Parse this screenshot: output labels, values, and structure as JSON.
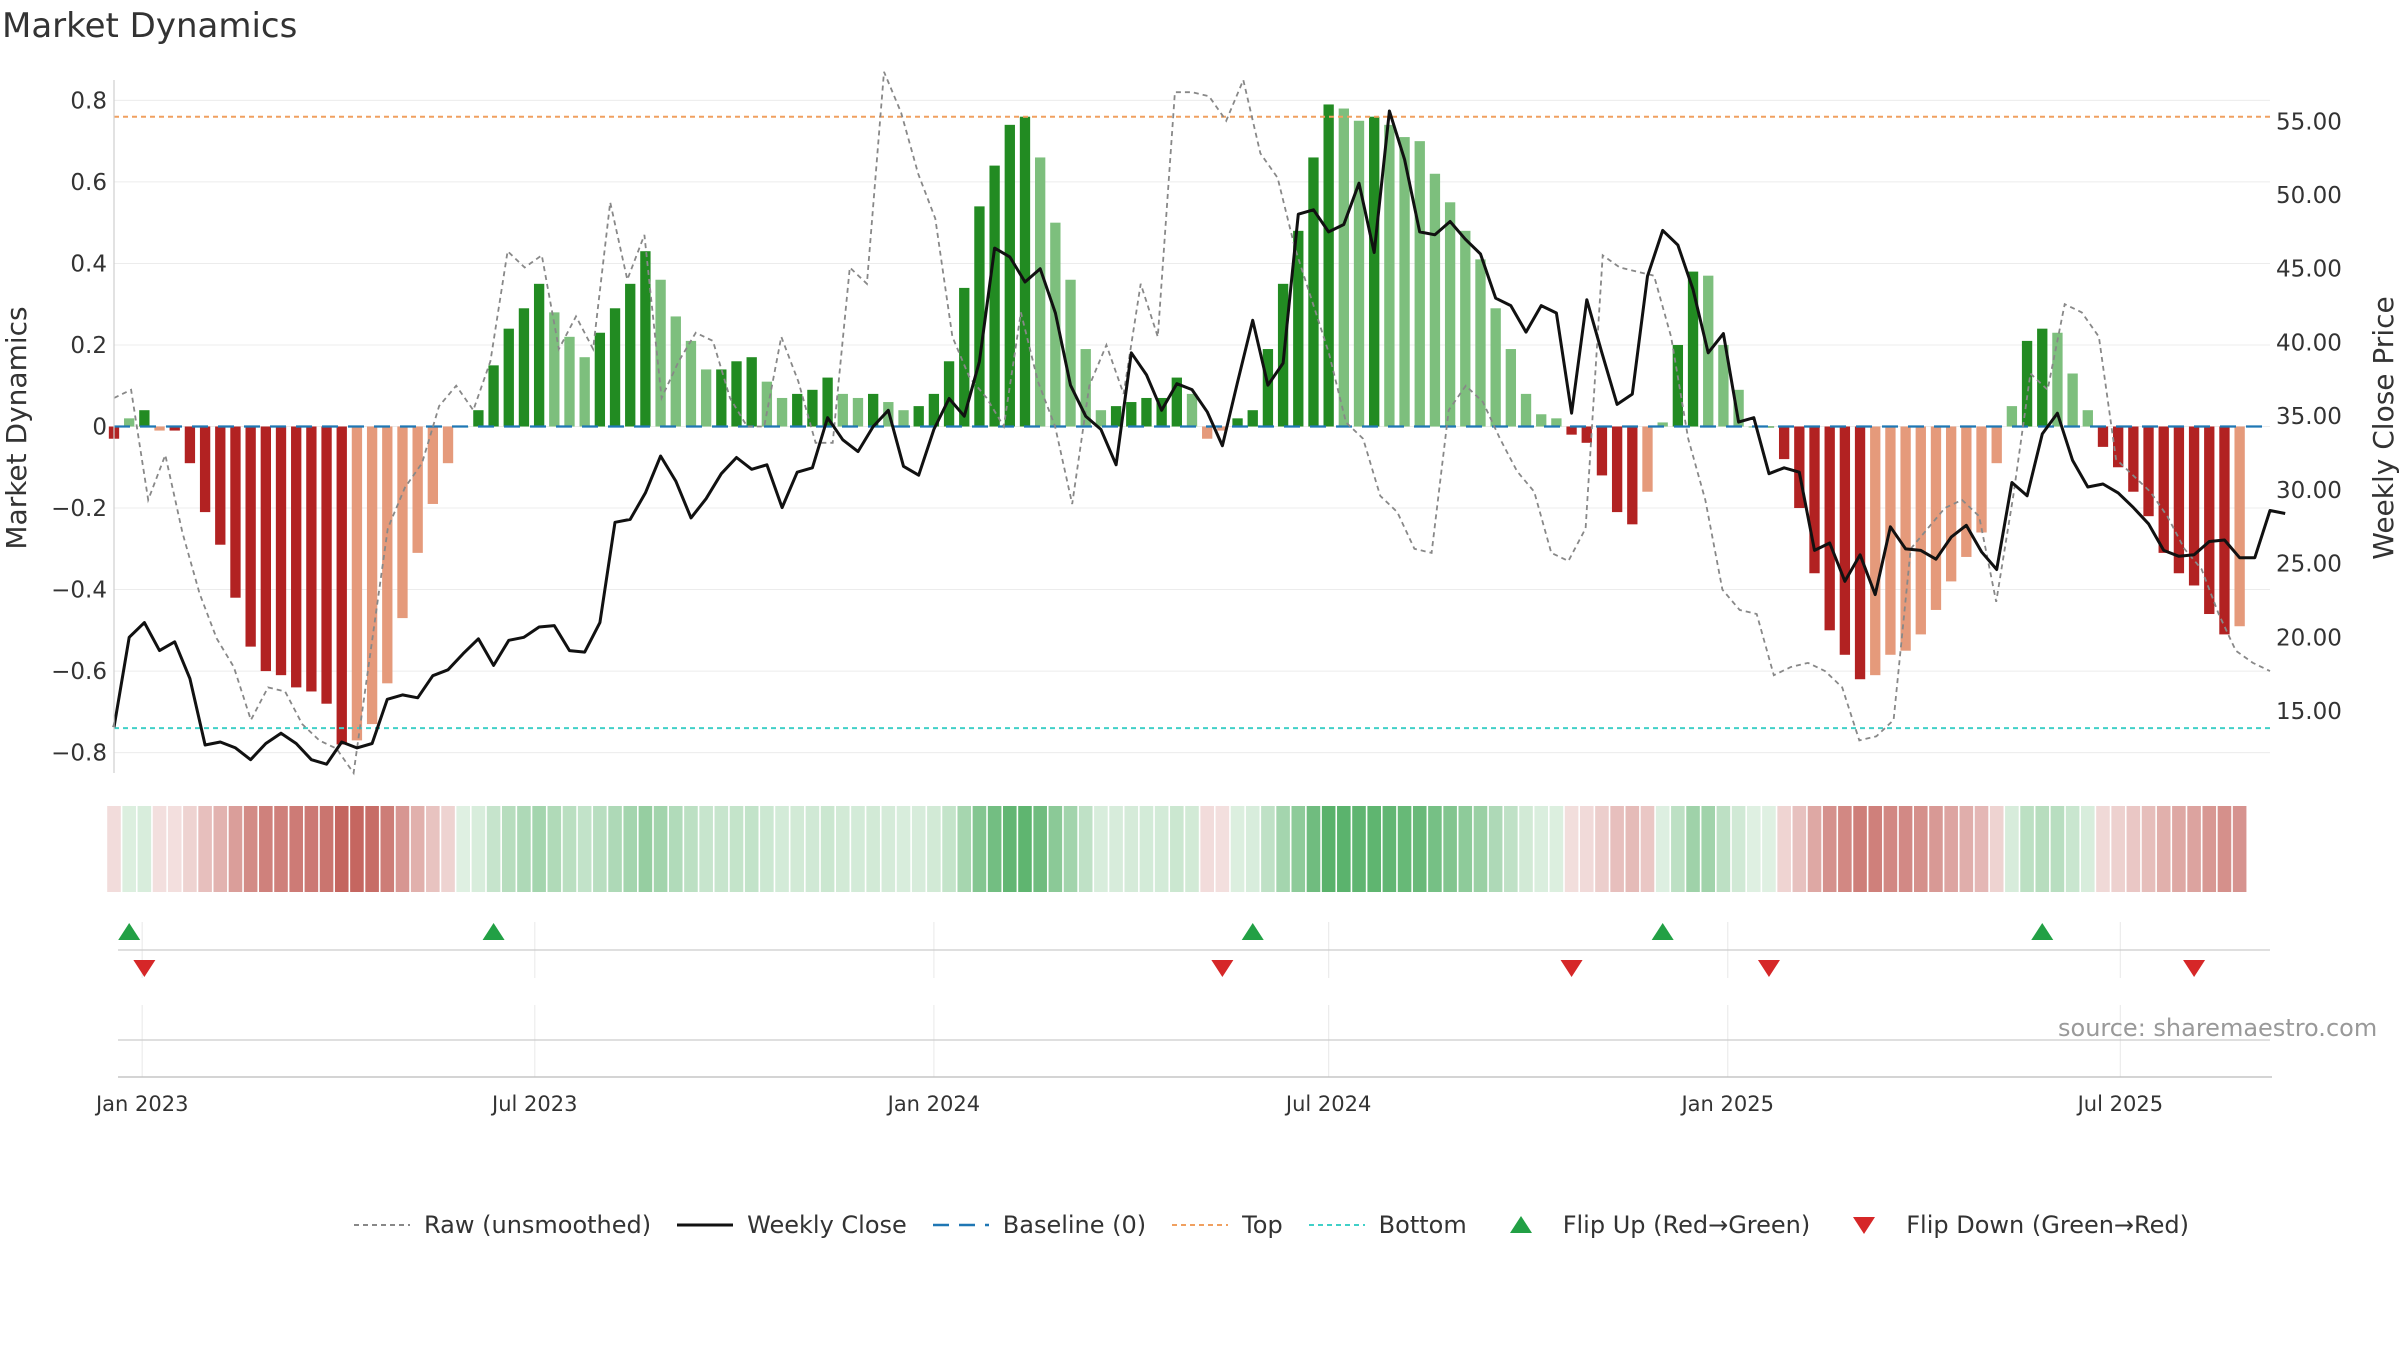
{
  "title": "Market Dynamics",
  "source": "source: sharemaestro.com",
  "colors": {
    "strong_green": "#228b22",
    "light_green": "#7dbf7d",
    "strong_red": "#b22222",
    "light_red": "#e59a7b",
    "price_line": "#111111",
    "raw_line": "#888888",
    "baseline": "#1f77b4",
    "top_line": "#f0a060",
    "bottom_line": "#40d0c8",
    "flip_up": "#22a045",
    "flip_down": "#d62728"
  },
  "legend": [
    {
      "label": "Raw (unsmoothed)",
      "icon": "dashed-gray-line"
    },
    {
      "label": "Weekly Close",
      "icon": "solid-black-line"
    },
    {
      "label": "Baseline (0)",
      "icon": "dashed-blue-line"
    },
    {
      "label": "Top",
      "icon": "dotted-orange-line"
    },
    {
      "label": "Bottom",
      "icon": "dotted-teal-line"
    },
    {
      "label": "Flip Up (Red→Green)",
      "icon": "green-up-triangle"
    },
    {
      "label": "Flip Down (Green→Red)",
      "icon": "red-down-triangle"
    }
  ],
  "chart_data": {
    "type": "bar",
    "title": "Market Dynamics",
    "ylabel": "Market Dynamics",
    "y2label": "Weekly Close Price",
    "ylim": [
      -0.85,
      0.85
    ],
    "y2lim": [
      10.8,
      57.8
    ],
    "yticks": [
      0.8,
      0.6,
      0.4,
      0.2,
      0,
      -0.2,
      -0.4,
      -0.6,
      -0.8
    ],
    "ytick_labels": [
      "0.8",
      "0.6",
      "0.4",
      "0.2",
      "0",
      "−0.2",
      "−0.4",
      "−0.6",
      "−0.8"
    ],
    "y2ticks": [
      "55.00",
      "50.00",
      "45.00",
      "40.00",
      "35.00",
      "30.00",
      "25.00",
      "20.00",
      "15.00"
    ],
    "x_start": "2022-12-19",
    "x_end": "2025-09-08",
    "x_step_days": 7,
    "xticks": [
      {
        "date": "2023-01-01",
        "label": "Jan 2023"
      },
      {
        "date": "2023-07-01",
        "label": "Jul 2023"
      },
      {
        "date": "2024-01-01",
        "label": "Jan 2024"
      },
      {
        "date": "2024-07-01",
        "label": "Jul 2024"
      },
      {
        "date": "2025-01-01",
        "label": "Jan 2025"
      },
      {
        "date": "2025-07-01",
        "label": "Jul 2025"
      }
    ],
    "top_level": 0.76,
    "bottom_level": -0.74,
    "grid": true,
    "legend_position": "bottom",
    "series": [
      {
        "name": "Market Dynamics",
        "values": [
          -0.03,
          0.02,
          0.04,
          -0.01,
          -0.01,
          -0.09,
          -0.21,
          -0.29,
          -0.42,
          -0.54,
          -0.6,
          -0.61,
          -0.64,
          -0.65,
          -0.68,
          -0.78,
          -0.77,
          -0.73,
          -0.63,
          -0.47,
          -0.31,
          -0.19,
          -0.09,
          0.0,
          0.04,
          0.15,
          0.24,
          0.29,
          0.35,
          0.28,
          0.22,
          0.17,
          0.23,
          0.29,
          0.35,
          0.43,
          0.36,
          0.27,
          0.21,
          0.14,
          0.14,
          0.16,
          0.17,
          0.11,
          0.07,
          0.08,
          0.09,
          0.12,
          0.08,
          0.07,
          0.08,
          0.06,
          0.04,
          0.05,
          0.08,
          0.16,
          0.34,
          0.54,
          0.64,
          0.74,
          0.76,
          0.66,
          0.5,
          0.36,
          0.19,
          0.04,
          0.05,
          0.06,
          0.07,
          0.07,
          0.12,
          0.08,
          -0.03,
          -0.01,
          0.02,
          0.04,
          0.19,
          0.35,
          0.48,
          0.66,
          0.79,
          0.78,
          0.75,
          0.76,
          0.74,
          0.71,
          0.7,
          0.62,
          0.55,
          0.48,
          0.41,
          0.29,
          0.19,
          0.08,
          0.03,
          0.02,
          -0.02,
          -0.04,
          -0.12,
          -0.21,
          -0.24,
          -0.16,
          0.01,
          0.2,
          0.38,
          0.37,
          0.2,
          0.09,
          0.0,
          0.0,
          -0.08,
          -0.2,
          -0.36,
          -0.5,
          -0.56,
          -0.62,
          -0.61,
          -0.56,
          -0.55,
          -0.51,
          -0.45,
          -0.38,
          -0.32,
          -0.26,
          -0.09,
          0.05,
          0.21,
          0.24,
          0.23,
          0.13,
          0.04,
          -0.05,
          -0.1,
          -0.16,
          -0.22,
          -0.31,
          -0.36,
          -0.39,
          -0.46,
          -0.51,
          -0.49
        ]
      },
      {
        "name": "Raw (unsmoothed)",
        "values": [
          0.07,
          0.09,
          -0.18,
          -0.07,
          -0.26,
          -0.41,
          -0.52,
          -0.59,
          -0.72,
          -0.64,
          -0.65,
          -0.73,
          -0.77,
          -0.79,
          -0.85,
          -0.55,
          -0.25,
          -0.15,
          -0.09,
          0.05,
          0.1,
          0.04,
          0.16,
          0.43,
          0.39,
          0.42,
          0.19,
          0.27,
          0.19,
          0.55,
          0.36,
          0.47,
          0.07,
          0.16,
          0.23,
          0.21,
          0.07,
          0.0,
          0.0,
          0.22,
          0.11,
          -0.04,
          -0.04,
          0.39,
          0.35,
          0.87,
          0.77,
          0.62,
          0.51,
          0.22,
          0.12,
          0.07,
          0.0,
          0.28,
          0.11,
          0.0,
          -0.19,
          0.1,
          0.2,
          0.08,
          0.35,
          0.22,
          0.82,
          0.82,
          0.81,
          0.75,
          0.85,
          0.67,
          0.61,
          0.44,
          0.31,
          0.18,
          0.01,
          -0.03,
          -0.17,
          -0.21,
          -0.3,
          -0.31,
          0.04,
          0.1,
          0.06,
          -0.03,
          -0.11,
          -0.16,
          -0.31,
          -0.33,
          -0.25,
          0.42,
          0.39,
          0.38,
          0.37,
          0.22,
          -0.03,
          -0.18,
          -0.4,
          -0.45,
          -0.46,
          -0.61,
          -0.59,
          -0.58,
          -0.6,
          -0.64,
          -0.77,
          -0.76,
          -0.72,
          -0.3,
          -0.25,
          -0.2,
          -0.18,
          -0.22,
          -0.43,
          -0.17,
          0.13,
          0.09,
          0.3,
          0.28,
          0.22,
          -0.08,
          -0.12,
          -0.16,
          -0.22,
          -0.3,
          -0.35,
          -0.46,
          -0.55,
          -0.58,
          -0.6
        ]
      },
      {
        "name": "Weekly Close",
        "values": [
          13.9,
          20.0,
          21.0,
          19.1,
          19.7,
          17.2,
          12.7,
          12.9,
          12.5,
          11.7,
          12.8,
          13.5,
          12.8,
          11.7,
          11.4,
          12.9,
          12.5,
          12.8,
          15.8,
          16.1,
          15.9,
          17.4,
          17.8,
          18.9,
          19.9,
          18.1,
          19.8,
          20.0,
          20.7,
          20.8,
          19.1,
          19.0,
          21.0,
          27.8,
          28.0,
          29.8,
          32.3,
          30.6,
          28.1,
          29.4,
          31.1,
          32.2,
          31.4,
          31.7,
          28.8,
          31.2,
          31.5,
          34.9,
          33.4,
          32.6,
          34.3,
          35.4,
          31.6,
          31.0,
          34.1,
          36.2,
          35.0,
          38.7,
          46.4,
          45.8,
          44.1,
          45.0,
          42.0,
          37.1,
          35.0,
          34.1,
          31.7,
          39.3,
          37.8,
          35.4,
          37.2,
          36.8,
          35.3,
          33.0,
          37.3,
          41.5,
          37.1,
          38.6,
          48.7,
          49.0,
          47.5,
          48.0,
          50.8,
          46.1,
          55.7,
          52.4,
          47.5,
          47.3,
          48.2,
          47.0,
          46.0,
          43.0,
          42.5,
          40.7,
          42.5,
          42.0,
          35.2,
          42.9,
          39.3,
          35.8,
          36.5,
          44.5,
          47.6,
          46.6,
          43.6,
          39.3,
          40.6,
          34.6,
          34.9,
          31.1,
          31.5,
          31.2,
          25.9,
          26.4,
          23.8,
          25.6,
          22.9,
          27.5,
          26.0,
          25.9,
          25.3,
          26.8,
          27.6,
          25.8,
          24.6,
          30.5,
          29.6,
          33.8,
          35.2,
          32.0,
          30.2,
          30.4,
          29.8,
          28.8,
          27.7,
          25.9,
          25.5,
          25.6,
          26.5,
          26.6,
          25.4,
          25.4,
          28.6,
          28.4
        ]
      }
    ],
    "flip_up": [
      "2022-12-26",
      "2023-06-12",
      "2024-05-27",
      "2024-12-02",
      "2025-05-26"
    ],
    "flip_down": [
      "2023-01-02",
      "2024-05-13",
      "2024-10-21",
      "2025-01-20",
      "2025-08-04"
    ]
  }
}
